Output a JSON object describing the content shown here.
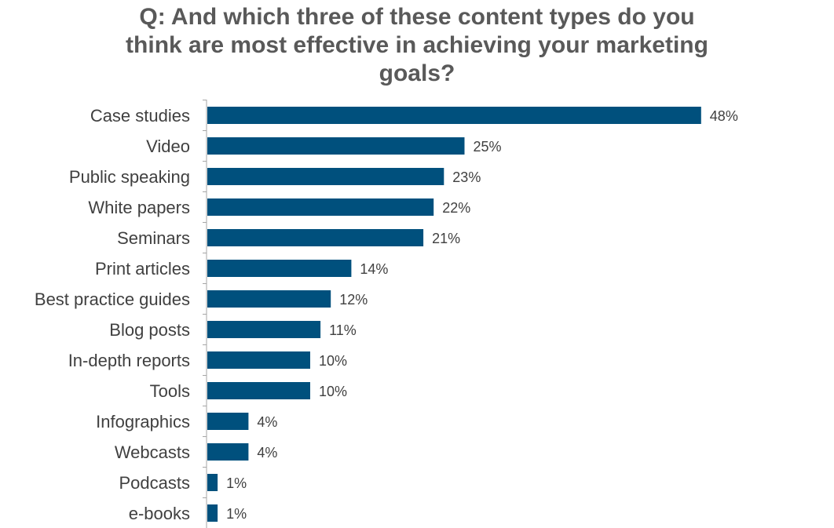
{
  "chart_data": {
    "type": "bar",
    "orientation": "horizontal",
    "title_lines": [
      "Q: And which three of these content types do you",
      "think are most effective in achieving your marketing",
      "goals?"
    ],
    "categories": [
      "Case studies",
      "Video",
      "Public speaking",
      "White papers",
      "Seminars",
      "Print articles",
      "Best practice guides",
      "Blog posts",
      "In-depth reports",
      "Tools",
      "Infographics",
      "Webcasts",
      "Podcasts",
      "e-books"
    ],
    "values": [
      48,
      25,
      23,
      22,
      21,
      14,
      12,
      11,
      10,
      10,
      4,
      4,
      1,
      1
    ],
    "value_labels": [
      "48%",
      "25%",
      "23%",
      "22%",
      "21%",
      "14%",
      "12%",
      "11%",
      "10%",
      "10%",
      "4%",
      "4%",
      "1%",
      "1%"
    ],
    "unit": "%",
    "xlim": [
      0,
      50
    ],
    "grid": false,
    "legend": "none",
    "bar_color": "#00507D",
    "axis_color": "#A6A6A6"
  }
}
